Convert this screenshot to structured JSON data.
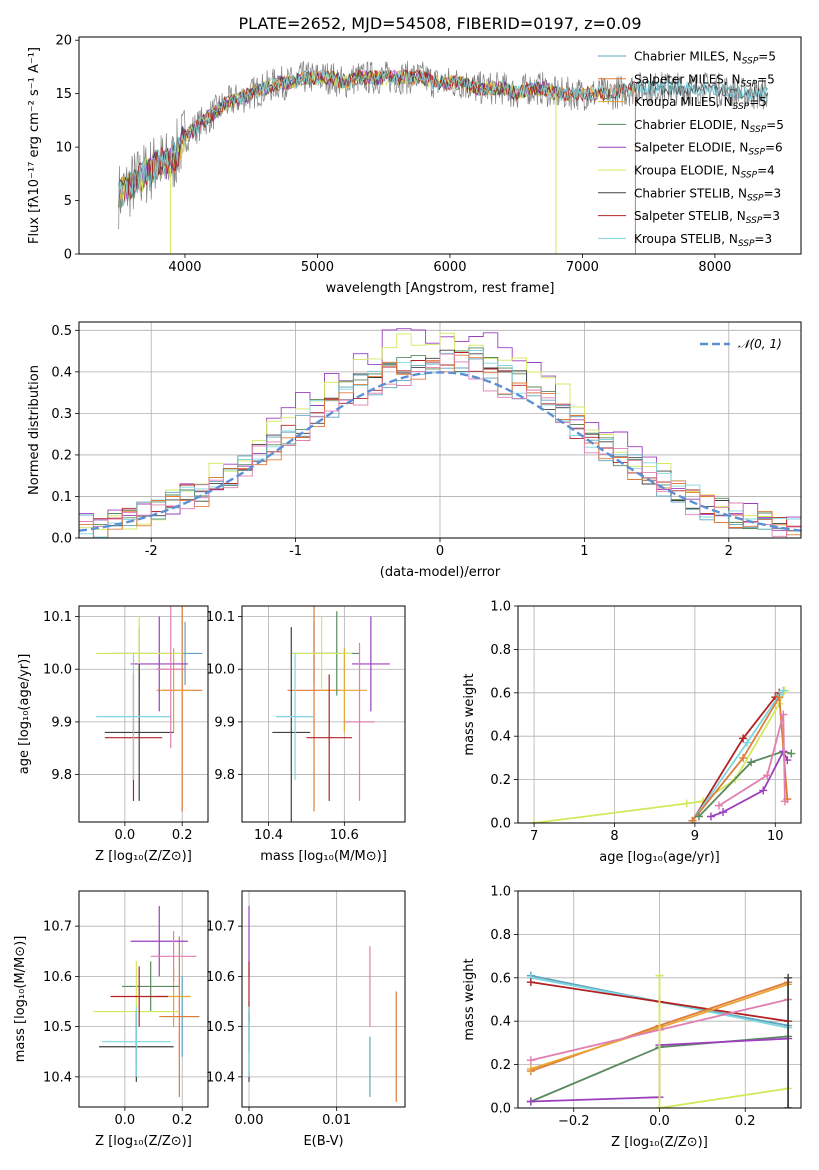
{
  "figure": {
    "title": "PLATE=2652, MJD=54508, FIBERID=0197, z=0.09"
  },
  "colors": {
    "chab_miles": "#5fa4bf",
    "salp_miles": "#e07b3a",
    "krou_miles": "#e8a532",
    "chab_elodie": "#5a8a5e",
    "salp_elodie": "#9b3fbf",
    "krou_elodie": "#d4e85c",
    "chab_stelib": "#404040",
    "salp_stelib": "#b22222",
    "krou_stelib": "#7fd6e0",
    "extra_pink": "#e07fb0",
    "normal": "#5b8fd6"
  },
  "legend_spectrum": [
    {
      "base": "Chabrier MILES, N",
      "sub": "SSP",
      "tail": "=5",
      "color_key": "chab_miles"
    },
    {
      "base": "Salpeter MILES, N",
      "sub": "SSP",
      "tail": "=5",
      "color_key": "salp_miles"
    },
    {
      "base": "Kroupa MILES, N",
      "sub": "SSP",
      "tail": "=5",
      "color_key": "krou_miles"
    },
    {
      "base": "Chabrier ELODIE, N",
      "sub": "SSP",
      "tail": "=5",
      "color_key": "chab_elodie"
    },
    {
      "base": "Salpeter ELODIE, N",
      "sub": "SSP",
      "tail": "=6",
      "color_key": "salp_elodie"
    },
    {
      "base": "Kroupa ELODIE, N",
      "sub": "SSP",
      "tail": "=4",
      "color_key": "krou_elodie"
    },
    {
      "base": "Chabrier STELIB, N",
      "sub": "SSP",
      "tail": "=3",
      "color_key": "chab_stelib"
    },
    {
      "base": "Salpeter STELIB, N",
      "sub": "SSP",
      "tail": "=3",
      "color_key": "salp_stelib"
    },
    {
      "base": "Kroupa STELIB, N",
      "sub": "SSP",
      "tail": "=3",
      "color_key": "krou_stelib"
    }
  ],
  "chart_data": [
    {
      "id": "spectrum",
      "type": "line",
      "xlabel": "wavelength [Angstrom, rest frame]",
      "ylabel": "Flux [fλ10⁻¹⁷ erg cm⁻² s⁻¹ A⁻¹]",
      "xlim": [
        3200,
        8650
      ],
      "ylim": [
        0,
        20.3
      ],
      "xticks": [
        4000,
        5000,
        6000,
        7000,
        8000
      ],
      "yticks": [
        0,
        5,
        10,
        15,
        20
      ],
      "grid": false,
      "legend_position": "top-right",
      "continuum": {
        "x": [
          3500,
          3600,
          3700,
          3800,
          3900,
          4000,
          4100,
          4200,
          4300,
          4400,
          4500,
          4600,
          4700,
          4800,
          4900,
          5000,
          5100,
          5200,
          5300,
          5400,
          5500,
          5600,
          5700,
          5800,
          5900,
          6000,
          6100,
          6200,
          6300,
          6400,
          6500,
          6600,
          6700,
          6800,
          6900,
          7000,
          7200,
          7400,
          7600,
          7800,
          8000,
          8200,
          8400
        ],
        "y": [
          5.5,
          6.5,
          7.5,
          8.5,
          8.5,
          11.0,
          12.0,
          13.0,
          14.0,
          14.5,
          15.0,
          15.5,
          16.0,
          16.0,
          16.5,
          16.5,
          16.5,
          16.0,
          16.5,
          16.5,
          16.5,
          16.5,
          16.5,
          16.5,
          16.0,
          16.0,
          16.0,
          15.5,
          15.5,
          15.5,
          15.0,
          15.5,
          15.5,
          15.0,
          15.0,
          15.0,
          15.0,
          15.5,
          15.5,
          15.5,
          15.5,
          15.0,
          15.0
        ]
      },
      "model_end": [
        {
          "color_key": "chab_miles",
          "end": 8400
        },
        {
          "color_key": "salp_miles",
          "end": 7400
        },
        {
          "color_key": "krou_miles",
          "end": 7400
        },
        {
          "color_key": "chab_elodie",
          "end": 6800
        },
        {
          "color_key": "salp_elodie",
          "end": 6800
        },
        {
          "color_key": "krou_elodie",
          "end": 6800
        },
        {
          "color_key": "chab_stelib",
          "end": 8400
        },
        {
          "color_key": "salp_stelib",
          "end": 7400
        },
        {
          "color_key": "krou_stelib",
          "end": 8400
        }
      ]
    },
    {
      "id": "residuals",
      "type": "histogram",
      "xlabel": "(data-model)/error",
      "ylabel": "Normed distribution",
      "xlim": [
        -2.5,
        2.5
      ],
      "ylim": [
        0,
        0.52
      ],
      "xticks": [
        -2,
        -1,
        0,
        1,
        2
      ],
      "yticks": [
        0.0,
        0.1,
        0.2,
        0.3,
        0.4,
        0.5
      ],
      "grid": true,
      "bin_width": 0.1,
      "reference_label": "𝒩(0, 1)",
      "legend_position": "top-right",
      "peaks": [
        {
          "color_key": "salp_elodie",
          "peak": 0.5
        },
        {
          "color_key": "krou_elodie",
          "peak": 0.49
        },
        {
          "color_key": "chab_elodie",
          "peak": 0.44
        },
        {
          "color_key": "chab_stelib",
          "peak": 0.44
        },
        {
          "color_key": "salp_stelib",
          "peak": 0.43
        },
        {
          "color_key": "krou_stelib",
          "peak": 0.43
        },
        {
          "color_key": "chab_miles",
          "peak": 0.42
        },
        {
          "color_key": "salp_miles",
          "peak": 0.42
        },
        {
          "color_key": "extra_pink",
          "peak": 0.41
        }
      ]
    },
    {
      "id": "z_age",
      "type": "scatter",
      "xlabel": "Z [log₁₀(Z/Z⊙)]",
      "ylabel": "age  [log₁₀(age/yr)]",
      "xlim": [
        -0.16,
        0.29
      ],
      "ylim": [
        9.71,
        10.12
      ],
      "xticks": [
        0.0,
        0.2
      ],
      "xtick_labels": [
        "0.0",
        "0.2"
      ],
      "yticks": [
        9.8,
        9.9,
        10.0,
        10.1
      ],
      "grid": true,
      "points": [
        {
          "color_key": "chab_miles",
          "x": 0.21,
          "y": 10.03,
          "xerr": 0.06,
          "yerr": 0.06
        },
        {
          "color_key": "salp_miles",
          "x": 0.2,
          "y": 9.96,
          "xerr": 0.07,
          "yerr": 0.23
        },
        {
          "color_key": "krou_miles",
          "x": 0.17,
          "y": 9.96,
          "xerr": 0.06,
          "yerr": 0.08
        },
        {
          "color_key": "chab_elodie",
          "x": 0.05,
          "y": 10.03,
          "xerr": 0.1,
          "yerr": 0.05
        },
        {
          "color_key": "salp_elodie",
          "x": 0.12,
          "y": 10.01,
          "xerr": 0.1,
          "yerr": 0.09
        },
        {
          "color_key": "krou_elodie",
          "x": 0.05,
          "y": 10.03,
          "xerr": 0.15,
          "yerr": 0.07
        },
        {
          "color_key": "chab_stelib",
          "x": 0.05,
          "y": 9.88,
          "xerr": 0.12,
          "yerr": 0.13
        },
        {
          "color_key": "salp_stelib",
          "x": 0.03,
          "y": 9.87,
          "xerr": 0.1,
          "yerr": 0.12
        },
        {
          "color_key": "krou_stelib",
          "x": 0.03,
          "y": 9.91,
          "xerr": 0.13,
          "yerr": 0.12
        },
        {
          "color_key": "extra_pink",
          "x": 0.16,
          "y": 10.0,
          "xerr": 0.05,
          "yerr": 0.15
        }
      ]
    },
    {
      "id": "mass_age",
      "type": "scatter",
      "xlabel": "mass [log₁₀(M/M⊙)]",
      "ylabel": "",
      "xlim": [
        10.33,
        10.76
      ],
      "ylim": [
        9.71,
        10.12
      ],
      "xticks": [
        10.4,
        10.6
      ],
      "xtick_labels": [
        "10.4",
        "10.6"
      ],
      "yticks": [
        9.8,
        9.9,
        10.0,
        10.1
      ],
      "grid": true,
      "points": [
        {
          "color_key": "chab_miles",
          "x": 10.52,
          "y": 10.03,
          "xerr": 0.06,
          "yerr": 0.06
        },
        {
          "color_key": "salp_miles",
          "x": 10.52,
          "y": 9.96,
          "xerr": 0.07,
          "yerr": 0.23
        },
        {
          "color_key": "krou_miles",
          "x": 10.6,
          "y": 9.96,
          "xerr": 0.06,
          "yerr": 0.08
        },
        {
          "color_key": "chab_elodie",
          "x": 10.58,
          "y": 10.03,
          "xerr": 0.06,
          "yerr": 0.08
        },
        {
          "color_key": "salp_elodie",
          "x": 10.67,
          "y": 10.01,
          "xerr": 0.05,
          "yerr": 0.09
        },
        {
          "color_key": "krou_elodie",
          "x": 10.54,
          "y": 10.03,
          "xerr": 0.08,
          "yerr": 0.07
        },
        {
          "color_key": "chab_stelib",
          "x": 10.46,
          "y": 9.88,
          "xerr": 0.05,
          "yerr": 0.2
        },
        {
          "color_key": "salp_stelib",
          "x": 10.56,
          "y": 9.87,
          "xerr": 0.06,
          "yerr": 0.12
        },
        {
          "color_key": "krou_stelib",
          "x": 10.47,
          "y": 9.91,
          "xerr": 0.05,
          "yerr": 0.12
        },
        {
          "color_key": "extra_pink",
          "x": 10.64,
          "y": 9.9,
          "xerr": 0.04,
          "yerr": 0.15
        }
      ]
    },
    {
      "id": "age_mw",
      "type": "line",
      "xlabel": "age  [log₁₀(age/yr)]",
      "ylabel": "mass weight",
      "xlim": [
        6.8,
        10.32
      ],
      "ylim": [
        0,
        1.0
      ],
      "xticks": [
        7,
        8,
        9,
        10
      ],
      "yticks": [
        0.0,
        0.2,
        0.4,
        0.6,
        0.8,
        1.0
      ],
      "grid": true,
      "series": [
        {
          "color_key": "krou_elodie",
          "x": [
            7.0,
            8.9,
            9.1,
            9.5,
            10.05,
            10.12
          ],
          "y": [
            0.0,
            0.09,
            0.1,
            0.2,
            0.55,
            0.61
          ]
        },
        {
          "color_key": "salp_stelib",
          "x": [
            8.97,
            9.6,
            10.0,
            10.05
          ],
          "y": [
            0.01,
            0.39,
            0.58,
            0.6
          ]
        },
        {
          "color_key": "krou_stelib",
          "x": [
            8.97,
            9.65,
            10.05,
            10.1
          ],
          "y": [
            0.01,
            0.37,
            0.59,
            0.61
          ]
        },
        {
          "color_key": "salp_miles",
          "x": [
            8.97,
            9.6,
            10.05,
            10.15
          ],
          "y": [
            0.01,
            0.3,
            0.58,
            0.11
          ]
        },
        {
          "color_key": "chab_elodie",
          "x": [
            9.05,
            9.7,
            10.1,
            10.2
          ],
          "y": [
            0.03,
            0.28,
            0.33,
            0.32
          ]
        },
        {
          "color_key": "salp_elodie",
          "x": [
            9.2,
            9.35,
            9.85,
            10.1,
            10.15
          ],
          "y": [
            0.03,
            0.05,
            0.15,
            0.33,
            0.29
          ]
        },
        {
          "color_key": "extra_pink",
          "x": [
            9.3,
            9.9,
            10.1,
            10.12
          ],
          "y": [
            0.08,
            0.22,
            0.5,
            0.1
          ]
        }
      ]
    },
    {
      "id": "z_mass",
      "type": "scatter",
      "xlabel": "Z [log₁₀(Z/Z⊙)]",
      "ylabel": "mass [log₁₀(M/M⊙)]",
      "xlim": [
        -0.16,
        0.29
      ],
      "ylim": [
        10.34,
        10.77
      ],
      "xticks": [
        0.0,
        0.2
      ],
      "xtick_labels": [
        "0.0",
        "0.2"
      ],
      "yticks": [
        10.4,
        10.5,
        10.6,
        10.7
      ],
      "grid": true,
      "points": [
        {
          "color_key": "chab_miles",
          "x": 0.2,
          "y": 10.52,
          "xerr": 0.06,
          "yerr": 0.08
        },
        {
          "color_key": "salp_miles",
          "x": 0.19,
          "y": 10.52,
          "xerr": 0.07,
          "yerr": 0.16
        },
        {
          "color_key": "krou_miles",
          "x": 0.17,
          "y": 10.56,
          "xerr": 0.06,
          "yerr": 0.06
        },
        {
          "color_key": "chab_elodie",
          "x": 0.09,
          "y": 10.58,
          "xerr": 0.1,
          "yerr": 0.05
        },
        {
          "color_key": "salp_elodie",
          "x": 0.12,
          "y": 10.67,
          "xerr": 0.1,
          "yerr": 0.07
        },
        {
          "color_key": "krou_elodie",
          "x": 0.04,
          "y": 10.53,
          "xerr": 0.15,
          "yerr": 0.1
        },
        {
          "color_key": "chab_stelib",
          "x": 0.04,
          "y": 10.46,
          "xerr": 0.13,
          "yerr": 0.07
        },
        {
          "color_key": "salp_stelib",
          "x": 0.05,
          "y": 10.56,
          "xerr": 0.1,
          "yerr": 0.06
        },
        {
          "color_key": "krou_stelib",
          "x": 0.04,
          "y": 10.47,
          "xerr": 0.12,
          "yerr": 0.07
        },
        {
          "color_key": "extra_pink",
          "x": 0.17,
          "y": 10.64,
          "xerr": 0.08,
          "yerr": 0.05
        }
      ]
    },
    {
      "id": "ebv_mass",
      "type": "scatter",
      "xlabel": "E(B-V)",
      "ylabel": "",
      "xlim": [
        -0.0008,
        0.0178
      ],
      "ylim": [
        10.34,
        10.77
      ],
      "xticks": [
        0.0,
        0.01
      ],
      "xtick_labels": [
        "0.00",
        "0.01"
      ],
      "yticks": [
        10.4,
        10.5,
        10.6,
        10.7
      ],
      "grid": true,
      "points": [
        {
          "color_key": "chab_miles",
          "x": 0.0,
          "y": 10.5,
          "xerr": 0,
          "yerr": 0.05
        },
        {
          "color_key": "salp_elodie",
          "x": 0.0,
          "y": 10.67,
          "xerr": 0,
          "yerr": 0.07
        },
        {
          "color_key": "salp_stelib",
          "x": 0.0,
          "y": 10.57,
          "xerr": 0,
          "yerr": 0.06
        },
        {
          "color_key": "chab_stelib",
          "x": 0.0,
          "y": 10.46,
          "xerr": 0,
          "yerr": 0.07
        },
        {
          "color_key": "krou_stelib",
          "x": 0.0,
          "y": 10.47,
          "xerr": 0,
          "yerr": 0.07
        },
        {
          "color_key": "extra_pink",
          "x": 0.0138,
          "y": 10.58,
          "xerr": 0,
          "yerr": 0.08
        },
        {
          "color_key": "chab_miles",
          "x": 0.0138,
          "y": 10.42,
          "xerr": 0,
          "yerr": 0.06
        },
        {
          "color_key": "salp_miles",
          "x": 0.0168,
          "y": 10.46,
          "xerr": 0,
          "yerr": 0.11
        }
      ]
    },
    {
      "id": "z_mw",
      "type": "line",
      "xlabel": "Z [log₁₀(Z/Z⊙)]",
      "ylabel": "mass weight",
      "xlim": [
        -0.33,
        0.33
      ],
      "ylim": [
        0,
        1.0
      ],
      "xticks": [
        -0.2,
        0.0,
        0.2
      ],
      "xtick_labels": [
        "−0.2",
        "0.0",
        "0.2"
      ],
      "yticks": [
        0.0,
        0.2,
        0.4,
        0.6,
        0.8,
        1.0
      ],
      "grid": true,
      "series": [
        {
          "color_key": "chab_miles",
          "x": [
            -0.3,
            0.0,
            0.3
          ],
          "y": [
            0.61,
            0.49,
            0.38
          ]
        },
        {
          "color_key": "krou_stelib",
          "x": [
            -0.3,
            0.0,
            0.3
          ],
          "y": [
            0.6,
            0.49,
            0.37
          ]
        },
        {
          "color_key": "salp_stelib",
          "x": [
            -0.3,
            0.0,
            0.3
          ],
          "y": [
            0.58,
            0.49,
            0.4
          ]
        },
        {
          "color_key": "salp_miles",
          "x": [
            -0.3,
            0.0,
            0.3
          ],
          "y": [
            0.17,
            0.38,
            0.58
          ]
        },
        {
          "color_key": "krou_miles",
          "x": [
            -0.3,
            0.0,
            0.3
          ],
          "y": [
            0.18,
            0.37,
            0.57
          ]
        },
        {
          "color_key": "extra_pink",
          "x": [
            -0.3,
            0.0,
            0.3
          ],
          "y": [
            0.22,
            0.36,
            0.5
          ]
        },
        {
          "color_key": "chab_elodie",
          "x": [
            -0.3,
            0.0,
            0.3
          ],
          "y": [
            0.03,
            0.28,
            0.33
          ]
        },
        {
          "color_key": "salp_elodie",
          "x": [
            -0.3,
            0.0,
            0.0,
            0.3
          ],
          "y": [
            0.03,
            0.05,
            0.29,
            0.32
          ]
        },
        {
          "color_key": "krou_elodie",
          "x": [
            0.0,
            0.3
          ],
          "y": [
            0.0,
            0.09
          ]
        },
        {
          "color_key": "krou_elodie",
          "x": [
            0.0,
            0.0
          ],
          "y": [
            0.0,
            0.61
          ]
        },
        {
          "color_key": "chab_stelib",
          "x": [
            0.3,
            0.3
          ],
          "y": [
            0.0,
            0.6
          ]
        }
      ]
    }
  ]
}
